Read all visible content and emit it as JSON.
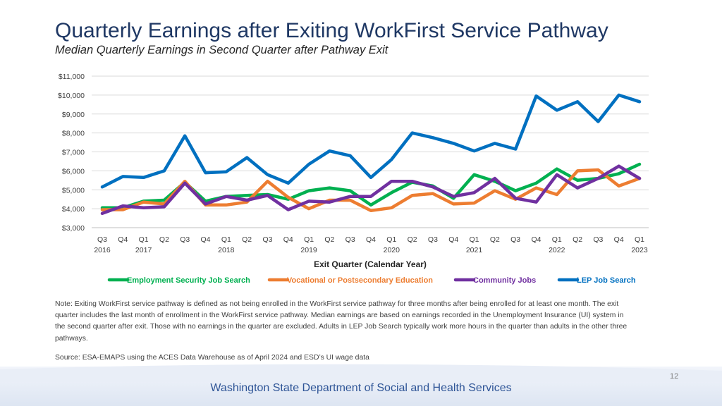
{
  "title": "Quarterly Earnings after Exiting WorkFirst Service Pathway",
  "subtitle": "Median Quarterly Earnings in Second Quarter after Pathway Exit",
  "chart_data": {
    "type": "line",
    "title": "Median Quarterly Earnings in Second Quarter after Pathway Exit",
    "xlabel": "Exit Quarter (Calendar Year)",
    "ylabel": "",
    "ylim": [
      3000,
      11000
    ],
    "yticks": [
      {
        "value": 3000,
        "label": "$3,000"
      },
      {
        "value": 4000,
        "label": "$4,000"
      },
      {
        "value": 5000,
        "label": "$5,000"
      },
      {
        "value": 6000,
        "label": "$6,000"
      },
      {
        "value": 7000,
        "label": "$7,000"
      },
      {
        "value": 8000,
        "label": "$8,000"
      },
      {
        "value": 9000,
        "label": "$9,000"
      },
      {
        "value": 10000,
        "label": "$10,000"
      },
      {
        "value": 11000,
        "label": "$11,000"
      }
    ],
    "categories": [
      "Q3",
      "Q4",
      "Q1",
      "Q2",
      "Q3",
      "Q4",
      "Q1",
      "Q2",
      "Q3",
      "Q4",
      "Q1",
      "Q2",
      "Q3",
      "Q4",
      "Q1",
      "Q2",
      "Q3",
      "Q4",
      "Q1",
      "Q2",
      "Q3",
      "Q4",
      "Q1",
      "Q2",
      "Q3",
      "Q4",
      "Q1"
    ],
    "year_labels": [
      {
        "index": 0,
        "label": "2016"
      },
      {
        "index": 2,
        "label": "2017"
      },
      {
        "index": 6,
        "label": "2018"
      },
      {
        "index": 10,
        "label": "2019"
      },
      {
        "index": 14,
        "label": "2020"
      },
      {
        "index": 18,
        "label": "2021"
      },
      {
        "index": 22,
        "label": "2022"
      },
      {
        "index": 26,
        "label": "2023"
      }
    ],
    "grid": true,
    "legend_position": "bottom",
    "series": [
      {
        "name": "Employment Security Job Search",
        "color": "#00b050",
        "values": [
          4050,
          4050,
          4400,
          4450,
          5400,
          4400,
          4650,
          4700,
          4750,
          4500,
          4950,
          5100,
          4950,
          4200,
          4850,
          5400,
          5200,
          4550,
          5800,
          5450,
          4950,
          5350,
          6100,
          5500,
          5600,
          5850,
          6350
        ]
      },
      {
        "name": "Vocational or Postsecondary Education",
        "color": "#ed7d31",
        "values": [
          3950,
          3950,
          4350,
          4250,
          5450,
          4200,
          4200,
          4350,
          5450,
          4600,
          4000,
          4450,
          4450,
          3900,
          4050,
          4700,
          4800,
          4250,
          4300,
          4950,
          4500,
          5100,
          4750,
          6000,
          6050,
          5200,
          5600
        ]
      },
      {
        "name": "Community Jobs",
        "color": "#7030a0",
        "values": [
          3750,
          4150,
          4050,
          4100,
          5350,
          4250,
          4650,
          4450,
          4700,
          3950,
          4400,
          4350,
          4650,
          4650,
          5450,
          5450,
          5150,
          4650,
          4850,
          5600,
          4550,
          4350,
          5800,
          5100,
          5600,
          6250,
          5600
        ]
      },
      {
        "name": "LEP Job Search",
        "color": "#0070c0",
        "values": [
          5150,
          5700,
          5650,
          6000,
          7850,
          5900,
          5950,
          6700,
          5800,
          5350,
          6350,
          7050,
          6800,
          5650,
          6600,
          8000,
          7750,
          7450,
          7050,
          7450,
          7150,
          9950,
          9200,
          9650,
          8600,
          10000,
          9650
        ]
      }
    ]
  },
  "note": "Note: Exiting WorkFirst service pathway is defined as not being enrolled in the WorkFirst service pathway for three months after being enrolled for at least one month. The exit quarter includes the last month of enrollment in the WorkFirst service pathway. Median earnings are based on earnings recorded in the Unemployment Insurance (UI) system in the second quarter after exit. Those with no earnings in the quarter are excluded. Adults in LEP Job Search typically work more hours in the quarter than adults in the other three pathways.",
  "source": "Source: ESA-EMAPS using the ACES Data Warehouse as of April 2024 and ESD’s UI wage data",
  "page_number": "12",
  "agency": "Washington State Department of Social and Health Services"
}
